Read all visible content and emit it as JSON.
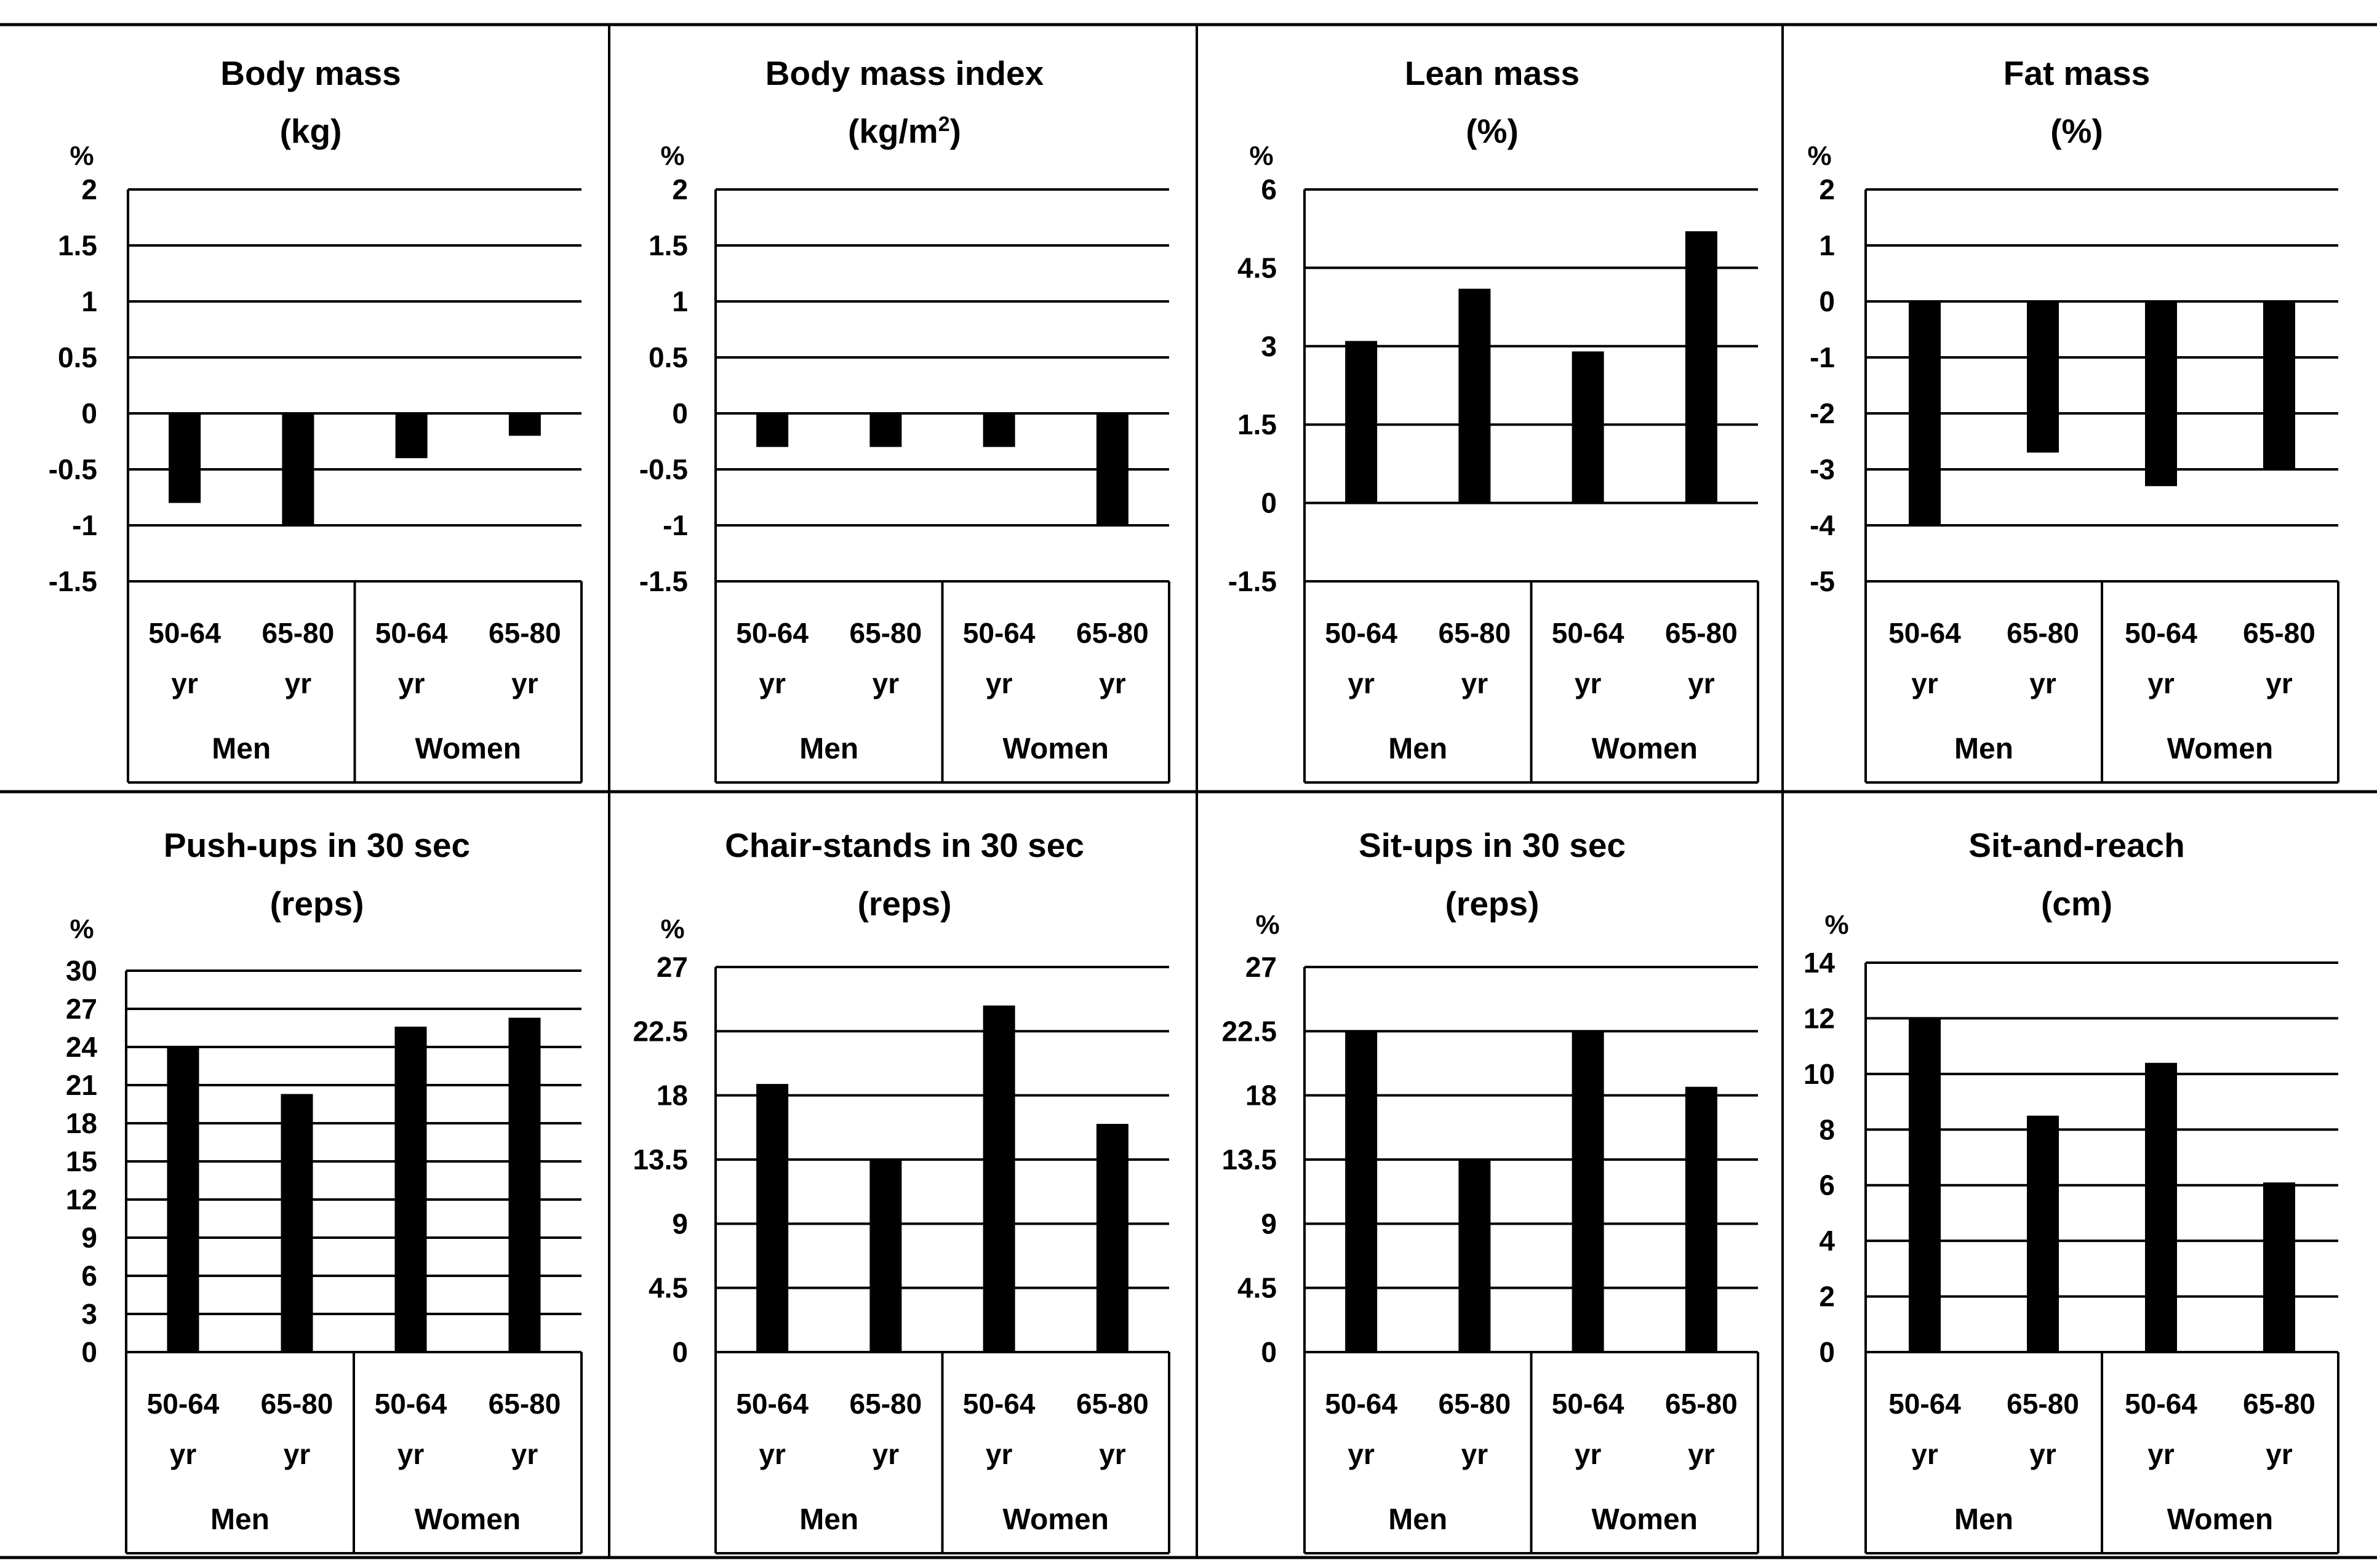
{
  "figure": {
    "bar_color": "#000000",
    "groups": [
      "Men",
      "Women"
    ],
    "category_top": [
      "50-64",
      "65-80",
      "50-64",
      "65-80"
    ],
    "category_bottom": [
      "yr",
      "yr",
      "yr",
      "yr"
    ],
    "y_unit_label": "%"
  },
  "chart_data": [
    {
      "type": "bar",
      "title": [
        "Body mass",
        "(kg)"
      ],
      "ylabel": "%",
      "categories": [
        "Men 50-64 yr",
        "Men 65-80 yr",
        "Women 50-64 yr",
        "Women 65-80 yr"
      ],
      "values": [
        -0.8,
        -1.0,
        -0.4,
        -0.2
      ],
      "yticks": [
        2,
        1.5,
        1,
        0.5,
        0,
        -0.5,
        -1,
        -1.5
      ],
      "ytick_labels": [
        "2",
        "1.5",
        "1",
        "0.5",
        "0",
        "-0.5",
        "-1",
        "-1.5"
      ],
      "ylim": [
        -1.5,
        2
      ]
    },
    {
      "type": "bar",
      "title": [
        "Body mass index",
        "(kg/m",
        "2",
        ")"
      ],
      "ylabel": "%",
      "categories": [
        "Men 50-64 yr",
        "Men 65-80 yr",
        "Women 50-64 yr",
        "Women 65-80 yr"
      ],
      "values": [
        -0.3,
        -0.3,
        -0.3,
        -1.0
      ],
      "yticks": [
        2,
        1.5,
        1,
        0.5,
        0,
        -0.5,
        -1,
        -1.5
      ],
      "ytick_labels": [
        "2",
        "1.5",
        "1",
        "0.5",
        "0",
        "-0.5",
        "-1",
        "-1.5"
      ],
      "ylim": [
        -1.5,
        2
      ]
    },
    {
      "type": "bar",
      "title": [
        "Lean mass",
        "(%)"
      ],
      "ylabel": "%",
      "categories": [
        "Men 50-64 yr",
        "Men 65-80 yr",
        "Women 50-64 yr",
        "Women 65-80 yr"
      ],
      "values": [
        3.1,
        4.1,
        2.9,
        5.2
      ],
      "yticks": [
        6,
        4.5,
        3,
        1.5,
        0,
        -1.5
      ],
      "ytick_labels": [
        "6",
        "4.5",
        "3",
        "1.5",
        "0",
        "-1.5"
      ],
      "ylim": [
        -1.5,
        6
      ]
    },
    {
      "type": "bar",
      "title": [
        "Fat mass",
        "(%)"
      ],
      "ylabel": "%",
      "categories": [
        "Men 50-64 yr",
        "Men 65-80 yr",
        "Women 50-64 yr",
        "Women 65-80 yr"
      ],
      "values": [
        -4.0,
        -2.7,
        -3.3,
        -3.0
      ],
      "yticks": [
        2,
        1,
        0,
        -1,
        -2,
        -3,
        -4,
        -5
      ],
      "ytick_labels": [
        "2",
        "1",
        "0",
        "-1",
        "-2",
        "-3",
        "-4",
        "-5"
      ],
      "ylim": [
        -5,
        2
      ]
    },
    {
      "type": "bar",
      "title": [
        "Push-ups in 30 sec",
        "(reps)"
      ],
      "ylabel": "%",
      "categories": [
        "Men 50-64 yr",
        "Men 65-80 yr",
        "Women 50-64 yr",
        "Women 65-80 yr"
      ],
      "values": [
        24,
        20.3,
        25.6,
        26.3
      ],
      "yticks": [
        30,
        27,
        24,
        21,
        18,
        15,
        12,
        9,
        6,
        3,
        0
      ],
      "ytick_labels": [
        "30",
        "27",
        "24",
        "21",
        "18",
        "15",
        "12",
        "9",
        "6",
        "3",
        "0"
      ],
      "ylim": [
        0,
        30
      ]
    },
    {
      "type": "bar",
      "title": [
        "Chair-stands in 30 sec",
        "(reps)"
      ],
      "ylabel": "%",
      "categories": [
        "Men 50-64 yr",
        "Men 65-80 yr",
        "Women 50-64 yr",
        "Women 65-80 yr"
      ],
      "values": [
        18.8,
        13.5,
        24.3,
        16
      ],
      "yticks": [
        27,
        22.5,
        18,
        13.5,
        9,
        4.5,
        0
      ],
      "ytick_labels": [
        "27",
        "22.5",
        "18",
        "13.5",
        "9",
        "4.5",
        "0"
      ],
      "ylim": [
        0,
        27
      ]
    },
    {
      "type": "bar",
      "title": [
        "Sit-ups in 30 sec",
        "(reps)"
      ],
      "ylabel": "%",
      "categories": [
        "Men 50-64 yr",
        "Men 65-80 yr",
        "Women 50-64 yr",
        "Women 65-80 yr"
      ],
      "values": [
        22.5,
        13.5,
        22.5,
        18.6
      ],
      "yticks": [
        27,
        22.5,
        18,
        13.5,
        9,
        4.5,
        0
      ],
      "ytick_labels": [
        "27",
        "22.5",
        "18",
        "13.5",
        "9",
        "4.5",
        "0"
      ],
      "ylim": [
        0,
        27
      ]
    },
    {
      "type": "bar",
      "title": [
        "Sit-and-reach",
        "(cm)"
      ],
      "ylabel": "%",
      "categories": [
        "Men 50-64 yr",
        "Men 65-80 yr",
        "Women 50-64 yr",
        "Women 65-80 yr"
      ],
      "values": [
        12,
        8.5,
        10.4,
        6.1
      ],
      "yticks": [
        14,
        12,
        10,
        8,
        6,
        4,
        2,
        0
      ],
      "ytick_labels": [
        "14",
        "12",
        "10",
        "8",
        "6",
        "4",
        "2",
        "0"
      ],
      "ylim": [
        0,
        14
      ]
    }
  ]
}
